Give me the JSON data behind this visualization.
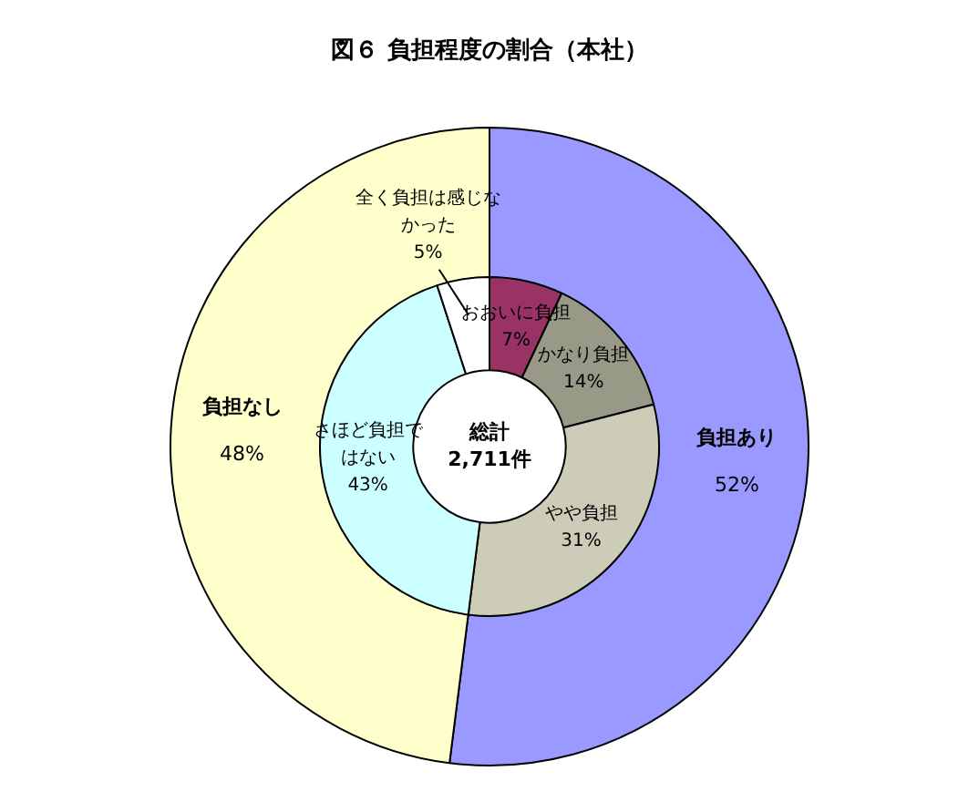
{
  "chart_data": [
    {
      "type": "donut",
      "title": "図６ 負担程度の割合（本社）",
      "categories": [
        "負担あり",
        "負担なし"
      ],
      "values": [
        52,
        48
      ],
      "colors": [
        "#9999ff",
        "#ffffcc"
      ],
      "value_labels": [
        "52%",
        "48%"
      ]
    },
    {
      "type": "donut",
      "categories": [
        "おおいに負担",
        "かなり負担",
        "やや負担",
        "さほど負担ではない",
        "全く負担は感じなかった"
      ],
      "values": [
        7,
        14,
        31,
        43,
        5
      ],
      "colors": [
        "#993366",
        "#999988",
        "#ccccb8",
        "#ccffff",
        "#ffffff"
      ],
      "value_labels": [
        "7%",
        "14%",
        "31%",
        "43%",
        "5%"
      ],
      "annotations": [
        "総計",
        "2,711件"
      ]
    }
  ]
}
